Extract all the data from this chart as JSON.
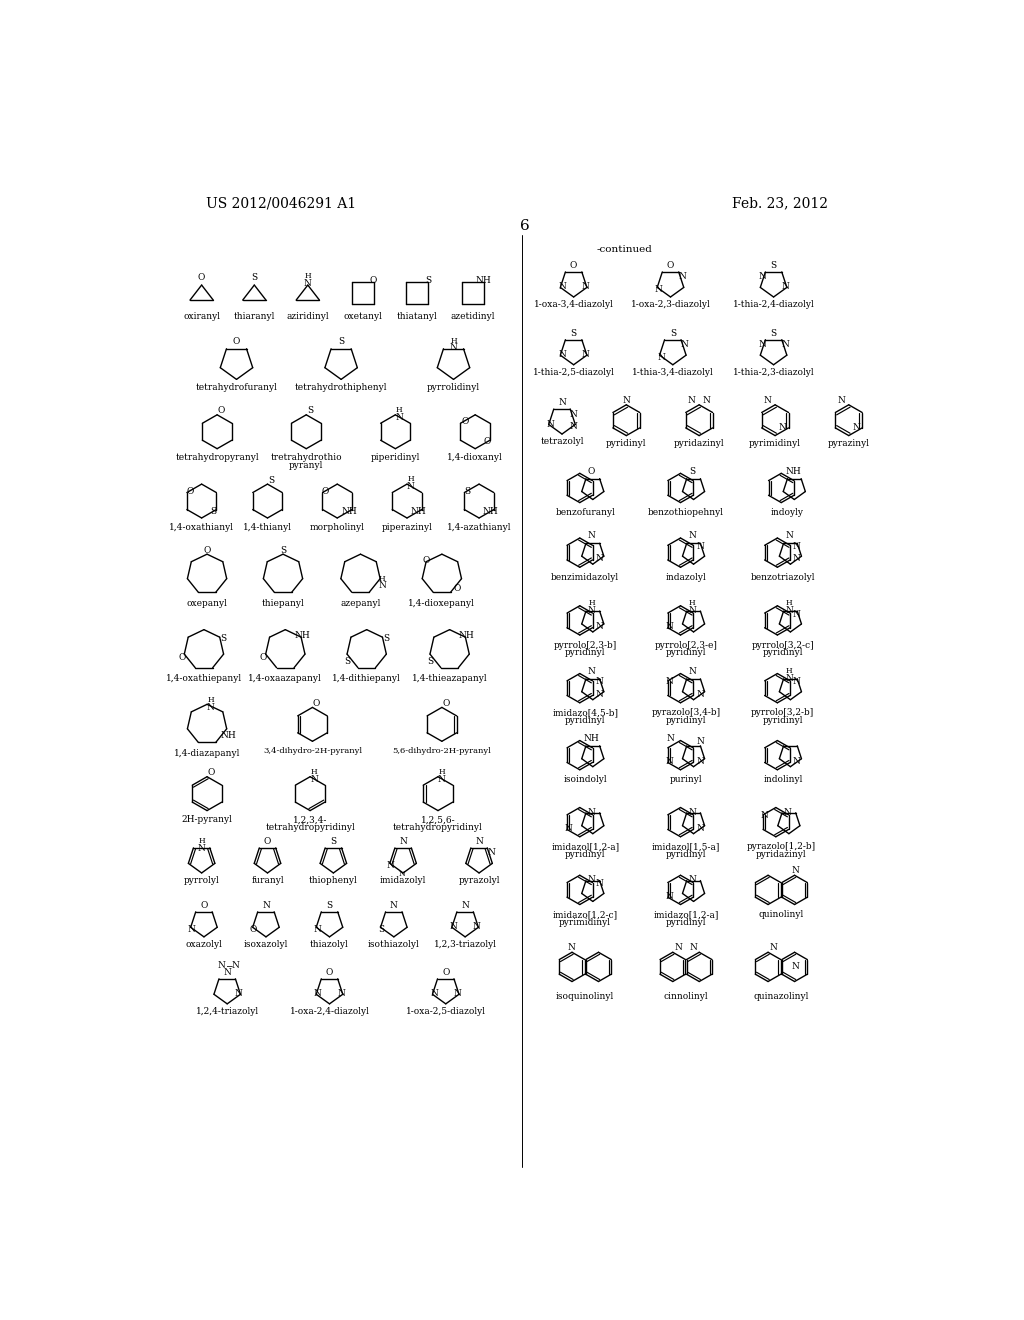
{
  "title_left": "US 2012/0046291 A1",
  "title_right": "Feb. 23, 2012",
  "page_number": "6",
  "continued": "-continued",
  "background": "#ffffff",
  "text_color": "#000000",
  "font_size_title": 10,
  "font_size_label": 6.5,
  "font_size_atom": 6.5,
  "font_size_page": 11
}
